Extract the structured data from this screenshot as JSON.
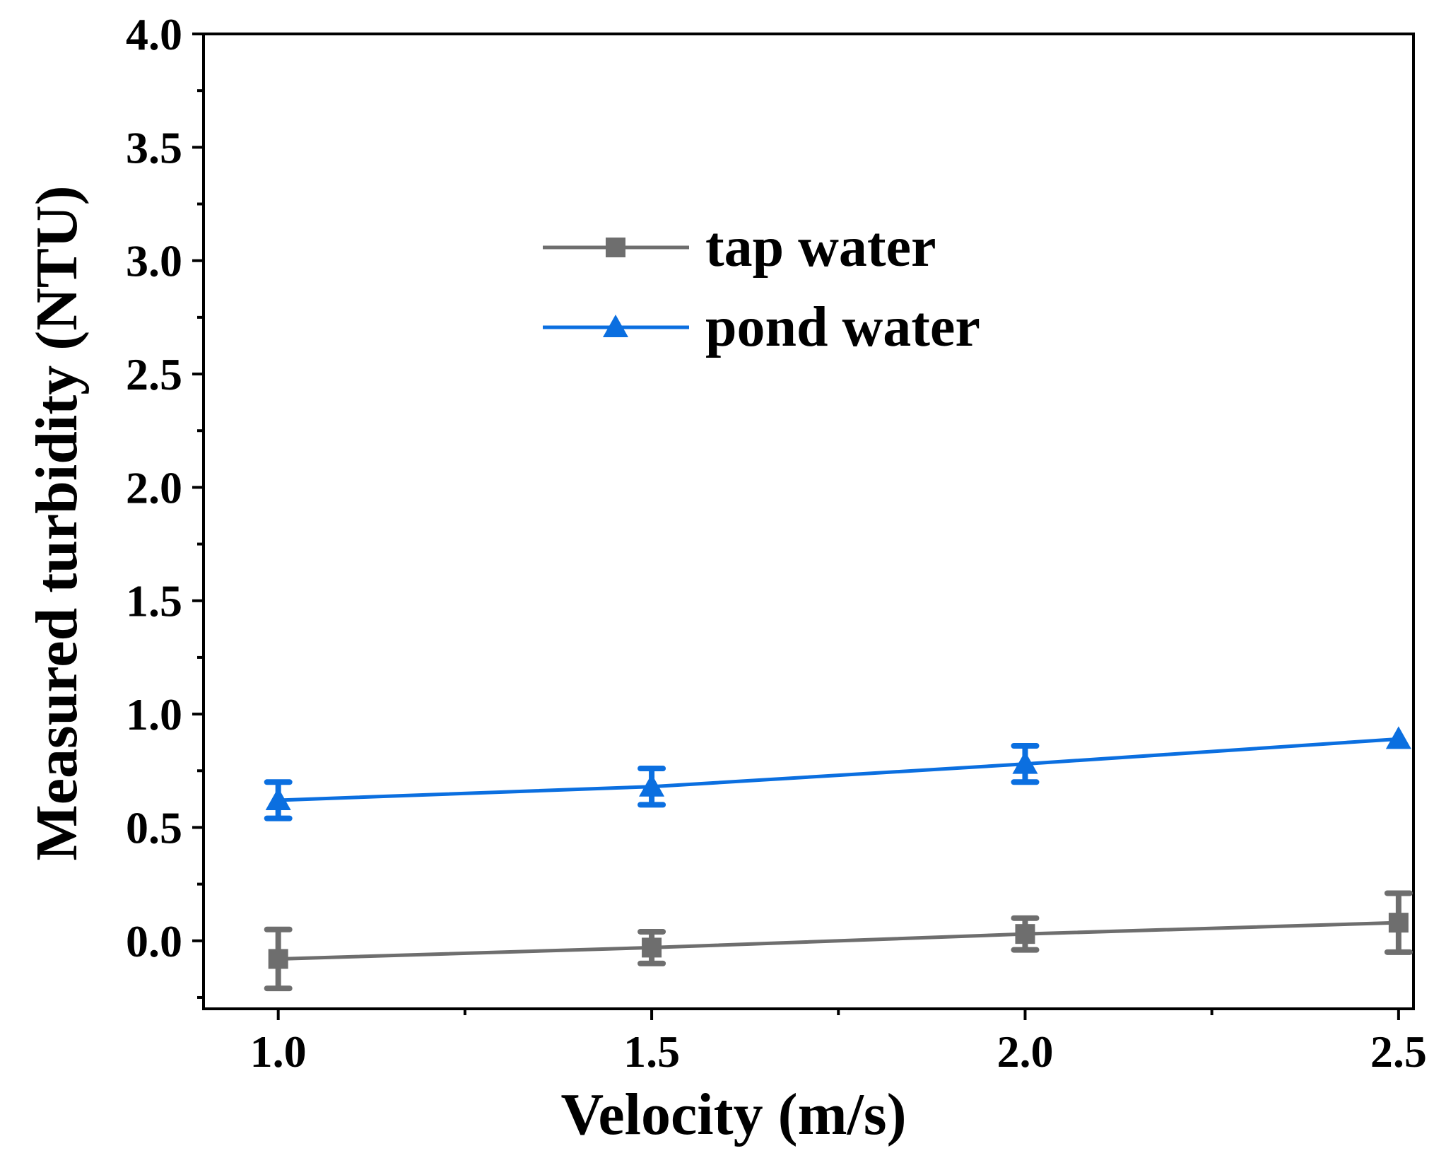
{
  "chart_data": {
    "type": "line",
    "title": "",
    "xlabel": "Velocity (m/s)",
    "ylabel": "Measured turbidity (NTU)",
    "xlim": [
      0.9,
      2.52
    ],
    "ylim": [
      -0.3,
      4.0
    ],
    "x_ticks": [
      1.0,
      1.5,
      2.0,
      2.5
    ],
    "x_tick_labels": [
      "1.0",
      "1.5",
      "2.0",
      "2.5"
    ],
    "x_minor_ticks": [
      1.25,
      1.75,
      2.25
    ],
    "y_ticks": [
      0.0,
      0.5,
      1.0,
      1.5,
      2.0,
      2.5,
      3.0,
      3.5,
      4.0
    ],
    "y_tick_labels": [
      "0.0",
      "0.5",
      "1.0",
      "1.5",
      "2.0",
      "2.5",
      "3.0",
      "3.5",
      "4.0"
    ],
    "y_minor_ticks": [
      -0.25,
      0.25,
      0.75,
      1.25,
      1.75,
      2.25,
      2.75,
      3.25,
      3.75
    ],
    "grid": false,
    "legend_position": "upper-center",
    "x": [
      1.0,
      1.5,
      2.0,
      2.5
    ],
    "series": [
      {
        "name": "tap water",
        "marker": "square",
        "color": "#6e6e6e",
        "values": [
          -0.08,
          -0.03,
          0.03,
          0.08
        ],
        "errors": [
          0.13,
          0.07,
          0.07,
          0.13
        ]
      },
      {
        "name": "pond water",
        "marker": "triangle",
        "color": "#0b6fe0",
        "values": [
          0.62,
          0.68,
          0.78,
          0.89
        ],
        "errors": [
          0.08,
          0.08,
          0.08,
          0.0
        ]
      }
    ]
  }
}
